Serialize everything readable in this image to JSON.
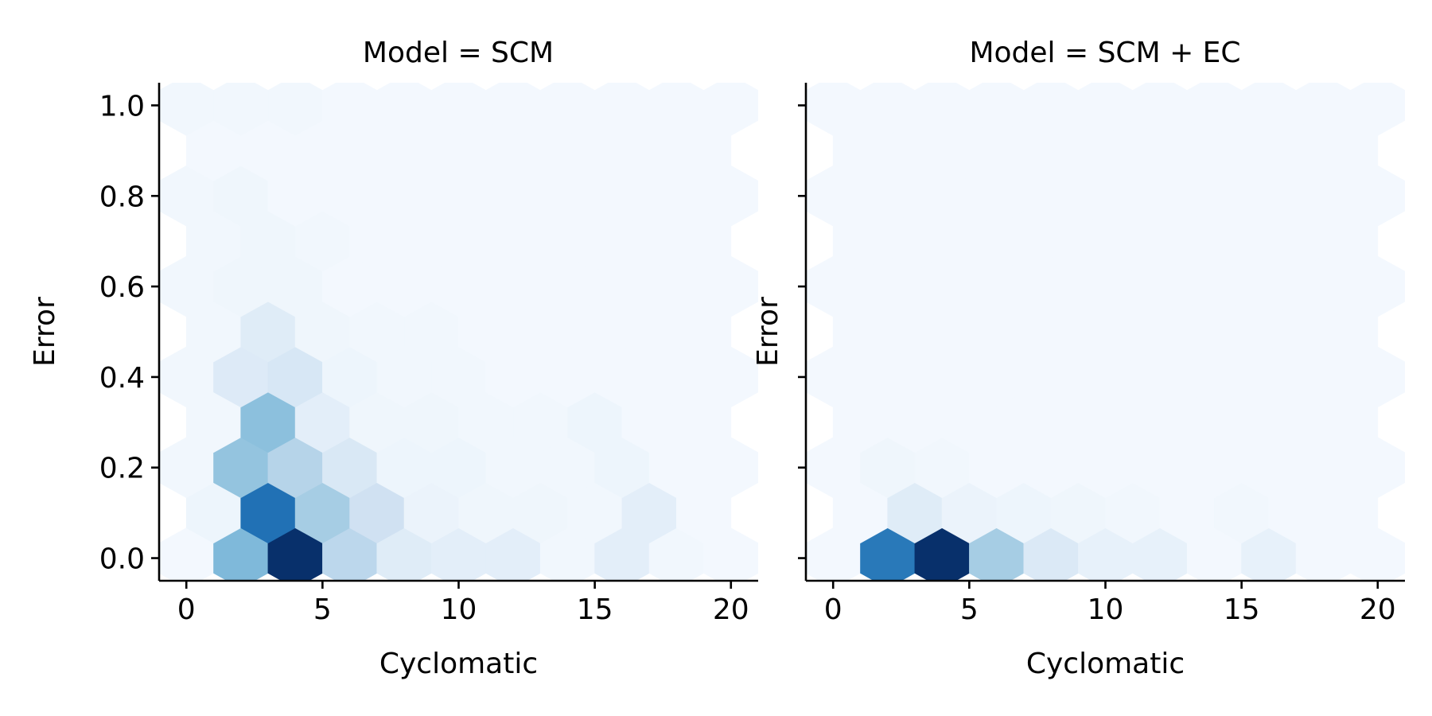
{
  "chart_data": [
    {
      "type": "heatmap",
      "subtype": "hexbin",
      "title": "Model = SCM",
      "xlabel": "Cyclomatic",
      "ylabel": "Error",
      "xlim": [
        -1,
        21
      ],
      "ylim": [
        -0.05,
        1.05
      ],
      "xticks": [
        "0",
        "5",
        "10",
        "15",
        "20"
      ],
      "yticks": [
        "0.0",
        "0.2",
        "0.4",
        "0.6",
        "0.8",
        "1.0"
      ],
      "colormap": "Blues",
      "grid": false,
      "hex_spacing": {
        "x": 2,
        "y": 0.1
      },
      "cells": [
        {
          "x": 0,
          "y": 0.0,
          "v": 0.02
        },
        {
          "x": 2,
          "y": 0.0,
          "v": 0.45
        },
        {
          "x": 4,
          "y": 0.0,
          "v": 1.0
        },
        {
          "x": 6,
          "y": 0.0,
          "v": 0.28
        },
        {
          "x": 8,
          "y": 0.0,
          "v": 0.12
        },
        {
          "x": 10,
          "y": 0.0,
          "v": 0.1
        },
        {
          "x": 12,
          "y": 0.0,
          "v": 0.1
        },
        {
          "x": 14,
          "y": 0.0,
          "v": 0.03
        },
        {
          "x": 16,
          "y": 0.0,
          "v": 0.1
        },
        {
          "x": 18,
          "y": 0.0,
          "v": 0.03
        },
        {
          "x": 20,
          "y": 0.0,
          "v": 0.02
        },
        {
          "x": 1,
          "y": 0.1,
          "v": 0.05
        },
        {
          "x": 3,
          "y": 0.1,
          "v": 0.75
        },
        {
          "x": 5,
          "y": 0.1,
          "v": 0.35
        },
        {
          "x": 7,
          "y": 0.1,
          "v": 0.2
        },
        {
          "x": 9,
          "y": 0.1,
          "v": 0.06
        },
        {
          "x": 11,
          "y": 0.1,
          "v": 0.04
        },
        {
          "x": 13,
          "y": 0.1,
          "v": 0.04
        },
        {
          "x": 15,
          "y": 0.1,
          "v": 0.03
        },
        {
          "x": 17,
          "y": 0.1,
          "v": 0.1
        },
        {
          "x": 19,
          "y": 0.1,
          "v": 0.02
        },
        {
          "x": 0,
          "y": 0.2,
          "v": 0.03
        },
        {
          "x": 2,
          "y": 0.2,
          "v": 0.4
        },
        {
          "x": 4,
          "y": 0.2,
          "v": 0.3
        },
        {
          "x": 6,
          "y": 0.2,
          "v": 0.15
        },
        {
          "x": 8,
          "y": 0.2,
          "v": 0.05
        },
        {
          "x": 10,
          "y": 0.2,
          "v": 0.05
        },
        {
          "x": 12,
          "y": 0.2,
          "v": 0.03
        },
        {
          "x": 14,
          "y": 0.2,
          "v": 0.03
        },
        {
          "x": 16,
          "y": 0.2,
          "v": 0.05
        },
        {
          "x": 18,
          "y": 0.2,
          "v": 0.02
        },
        {
          "x": 20,
          "y": 0.2,
          "v": 0.02
        },
        {
          "x": 1,
          "y": 0.3,
          "v": 0.03
        },
        {
          "x": 3,
          "y": 0.3,
          "v": 0.42
        },
        {
          "x": 5,
          "y": 0.3,
          "v": 0.1
        },
        {
          "x": 7,
          "y": 0.3,
          "v": 0.04
        },
        {
          "x": 9,
          "y": 0.3,
          "v": 0.04
        },
        {
          "x": 11,
          "y": 0.3,
          "v": 0.03
        },
        {
          "x": 13,
          "y": 0.3,
          "v": 0.03
        },
        {
          "x": 15,
          "y": 0.3,
          "v": 0.05
        },
        {
          "x": 17,
          "y": 0.3,
          "v": 0.02
        },
        {
          "x": 19,
          "y": 0.3,
          "v": 0.02
        },
        {
          "x": 0,
          "y": 0.4,
          "v": 0.03
        },
        {
          "x": 2,
          "y": 0.4,
          "v": 0.13
        },
        {
          "x": 4,
          "y": 0.4,
          "v": 0.16
        },
        {
          "x": 6,
          "y": 0.4,
          "v": 0.05
        },
        {
          "x": 8,
          "y": 0.4,
          "v": 0.03
        },
        {
          "x": 10,
          "y": 0.4,
          "v": 0.03
        },
        {
          "x": 12,
          "y": 0.4,
          "v": 0.02
        },
        {
          "x": 14,
          "y": 0.4,
          "v": 0.02
        },
        {
          "x": 16,
          "y": 0.4,
          "v": 0.02
        },
        {
          "x": 18,
          "y": 0.4,
          "v": 0.02
        },
        {
          "x": 20,
          "y": 0.4,
          "v": 0.02
        },
        {
          "x": 1,
          "y": 0.5,
          "v": 0.03
        },
        {
          "x": 3,
          "y": 0.5,
          "v": 0.12
        },
        {
          "x": 5,
          "y": 0.5,
          "v": 0.04
        },
        {
          "x": 7,
          "y": 0.5,
          "v": 0.03
        },
        {
          "x": 9,
          "y": 0.5,
          "v": 0.03
        },
        {
          "x": 11,
          "y": 0.5,
          "v": 0.02
        },
        {
          "x": 13,
          "y": 0.5,
          "v": 0.02
        },
        {
          "x": 15,
          "y": 0.5,
          "v": 0.02
        },
        {
          "x": 17,
          "y": 0.5,
          "v": 0.02
        },
        {
          "x": 19,
          "y": 0.5,
          "v": 0.02
        },
        {
          "x": 0,
          "y": 0.6,
          "v": 0.03
        },
        {
          "x": 2,
          "y": 0.6,
          "v": 0.04
        },
        {
          "x": 4,
          "y": 0.6,
          "v": 0.04
        },
        {
          "x": 6,
          "y": 0.6,
          "v": 0.02
        },
        {
          "x": 8,
          "y": 0.6,
          "v": 0.02
        },
        {
          "x": 10,
          "y": 0.6,
          "v": 0.02
        },
        {
          "x": 12,
          "y": 0.6,
          "v": 0.02
        },
        {
          "x": 14,
          "y": 0.6,
          "v": 0.02
        },
        {
          "x": 16,
          "y": 0.6,
          "v": 0.02
        },
        {
          "x": 18,
          "y": 0.6,
          "v": 0.02
        },
        {
          "x": 20,
          "y": 0.6,
          "v": 0.02
        },
        {
          "x": 1,
          "y": 0.7,
          "v": 0.03
        },
        {
          "x": 3,
          "y": 0.7,
          "v": 0.04
        },
        {
          "x": 5,
          "y": 0.7,
          "v": 0.03
        },
        {
          "x": 7,
          "y": 0.7,
          "v": 0.02
        },
        {
          "x": 9,
          "y": 0.7,
          "v": 0.02
        },
        {
          "x": 11,
          "y": 0.7,
          "v": 0.02
        },
        {
          "x": 13,
          "y": 0.7,
          "v": 0.02
        },
        {
          "x": 15,
          "y": 0.7,
          "v": 0.02
        },
        {
          "x": 17,
          "y": 0.7,
          "v": 0.02
        },
        {
          "x": 19,
          "y": 0.7,
          "v": 0.02
        },
        {
          "x": 0,
          "y": 0.8,
          "v": 0.03
        },
        {
          "x": 2,
          "y": 0.8,
          "v": 0.04
        },
        {
          "x": 4,
          "y": 0.8,
          "v": 0.02
        },
        {
          "x": 6,
          "y": 0.8,
          "v": 0.02
        },
        {
          "x": 8,
          "y": 0.8,
          "v": 0.02
        },
        {
          "x": 10,
          "y": 0.8,
          "v": 0.02
        },
        {
          "x": 12,
          "y": 0.8,
          "v": 0.02
        },
        {
          "x": 14,
          "y": 0.8,
          "v": 0.02
        },
        {
          "x": 16,
          "y": 0.8,
          "v": 0.02
        },
        {
          "x": 18,
          "y": 0.8,
          "v": 0.02
        },
        {
          "x": 20,
          "y": 0.8,
          "v": 0.02
        },
        {
          "x": 1,
          "y": 0.9,
          "v": 0.02
        },
        {
          "x": 3,
          "y": 0.9,
          "v": 0.02
        },
        {
          "x": 5,
          "y": 0.9,
          "v": 0.02
        },
        {
          "x": 7,
          "y": 0.9,
          "v": 0.02
        },
        {
          "x": 9,
          "y": 0.9,
          "v": 0.02
        },
        {
          "x": 11,
          "y": 0.9,
          "v": 0.02
        },
        {
          "x": 13,
          "y": 0.9,
          "v": 0.02
        },
        {
          "x": 15,
          "y": 0.9,
          "v": 0.02
        },
        {
          "x": 17,
          "y": 0.9,
          "v": 0.02
        },
        {
          "x": 19,
          "y": 0.9,
          "v": 0.02
        },
        {
          "x": 0,
          "y": 1.0,
          "v": 0.03
        },
        {
          "x": 2,
          "y": 1.0,
          "v": 0.03
        },
        {
          "x": 4,
          "y": 1.0,
          "v": 0.03
        },
        {
          "x": 6,
          "y": 1.0,
          "v": 0.02
        },
        {
          "x": 8,
          "y": 1.0,
          "v": 0.02
        },
        {
          "x": 10,
          "y": 1.0,
          "v": 0.02
        },
        {
          "x": 12,
          "y": 1.0,
          "v": 0.02
        },
        {
          "x": 14,
          "y": 1.0,
          "v": 0.02
        },
        {
          "x": 16,
          "y": 1.0,
          "v": 0.02
        },
        {
          "x": 18,
          "y": 1.0,
          "v": 0.02
        },
        {
          "x": 20,
          "y": 1.0,
          "v": 0.02
        }
      ]
    },
    {
      "type": "heatmap",
      "subtype": "hexbin",
      "title": "Model = SCM + EC",
      "xlabel": "Cyclomatic",
      "ylabel": "Error",
      "xlim": [
        -1,
        21
      ],
      "ylim": [
        -0.05,
        1.05
      ],
      "xticks": [
        "0",
        "5",
        "10",
        "15",
        "20"
      ],
      "yticks": [
        "0.0",
        "0.2",
        "0.4",
        "0.6",
        "0.8",
        "1.0"
      ],
      "colormap": "Blues",
      "grid": false,
      "hex_spacing": {
        "x": 2,
        "y": 0.1
      },
      "cells": [
        {
          "x": 0,
          "y": 0.0,
          "v": 0.02
        },
        {
          "x": 2,
          "y": 0.0,
          "v": 0.72
        },
        {
          "x": 4,
          "y": 0.0,
          "v": 1.0
        },
        {
          "x": 6,
          "y": 0.0,
          "v": 0.35
        },
        {
          "x": 8,
          "y": 0.0,
          "v": 0.14
        },
        {
          "x": 10,
          "y": 0.0,
          "v": 0.08
        },
        {
          "x": 12,
          "y": 0.0,
          "v": 0.08
        },
        {
          "x": 14,
          "y": 0.0,
          "v": 0.02
        },
        {
          "x": 16,
          "y": 0.0,
          "v": 0.08
        },
        {
          "x": 18,
          "y": 0.0,
          "v": 0.02
        },
        {
          "x": 20,
          "y": 0.0,
          "v": 0.02
        },
        {
          "x": 1,
          "y": 0.1,
          "v": 0.02
        },
        {
          "x": 3,
          "y": 0.1,
          "v": 0.12
        },
        {
          "x": 5,
          "y": 0.1,
          "v": 0.06
        },
        {
          "x": 7,
          "y": 0.1,
          "v": 0.05
        },
        {
          "x": 9,
          "y": 0.1,
          "v": 0.04
        },
        {
          "x": 11,
          "y": 0.1,
          "v": 0.03
        },
        {
          "x": 13,
          "y": 0.1,
          "v": 0.02
        },
        {
          "x": 15,
          "y": 0.1,
          "v": 0.03
        },
        {
          "x": 17,
          "y": 0.1,
          "v": 0.02
        },
        {
          "x": 19,
          "y": 0.1,
          "v": 0.02
        },
        {
          "x": 0,
          "y": 0.2,
          "v": 0.02
        },
        {
          "x": 2,
          "y": 0.2,
          "v": 0.04
        },
        {
          "x": 4,
          "y": 0.2,
          "v": 0.03
        },
        {
          "x": 6,
          "y": 0.2,
          "v": 0.02
        },
        {
          "x": 8,
          "y": 0.2,
          "v": 0.02
        },
        {
          "x": 10,
          "y": 0.2,
          "v": 0.02
        },
        {
          "x": 12,
          "y": 0.2,
          "v": 0.02
        },
        {
          "x": 14,
          "y": 0.2,
          "v": 0.02
        },
        {
          "x": 16,
          "y": 0.2,
          "v": 0.02
        },
        {
          "x": 18,
          "y": 0.2,
          "v": 0.02
        },
        {
          "x": 20,
          "y": 0.2,
          "v": 0.02
        },
        {
          "x": 1,
          "y": 0.3,
          "v": 0.02
        },
        {
          "x": 3,
          "y": 0.3,
          "v": 0.02
        },
        {
          "x": 5,
          "y": 0.3,
          "v": 0.02
        },
        {
          "x": 7,
          "y": 0.3,
          "v": 0.02
        },
        {
          "x": 9,
          "y": 0.3,
          "v": 0.02
        },
        {
          "x": 11,
          "y": 0.3,
          "v": 0.02
        },
        {
          "x": 13,
          "y": 0.3,
          "v": 0.02
        },
        {
          "x": 15,
          "y": 0.3,
          "v": 0.02
        },
        {
          "x": 17,
          "y": 0.3,
          "v": 0.02
        },
        {
          "x": 19,
          "y": 0.3,
          "v": 0.02
        },
        {
          "x": 0,
          "y": 0.4,
          "v": 0.02
        },
        {
          "x": 2,
          "y": 0.4,
          "v": 0.02
        },
        {
          "x": 4,
          "y": 0.4,
          "v": 0.02
        },
        {
          "x": 6,
          "y": 0.4,
          "v": 0.02
        },
        {
          "x": 8,
          "y": 0.4,
          "v": 0.02
        },
        {
          "x": 10,
          "y": 0.4,
          "v": 0.02
        },
        {
          "x": 12,
          "y": 0.4,
          "v": 0.02
        },
        {
          "x": 14,
          "y": 0.4,
          "v": 0.02
        },
        {
          "x": 16,
          "y": 0.4,
          "v": 0.02
        },
        {
          "x": 18,
          "y": 0.4,
          "v": 0.02
        },
        {
          "x": 20,
          "y": 0.4,
          "v": 0.02
        },
        {
          "x": 1,
          "y": 0.5,
          "v": 0.02
        },
        {
          "x": 3,
          "y": 0.5,
          "v": 0.02
        },
        {
          "x": 5,
          "y": 0.5,
          "v": 0.02
        },
        {
          "x": 7,
          "y": 0.5,
          "v": 0.02
        },
        {
          "x": 9,
          "y": 0.5,
          "v": 0.02
        },
        {
          "x": 11,
          "y": 0.5,
          "v": 0.02
        },
        {
          "x": 13,
          "y": 0.5,
          "v": 0.02
        },
        {
          "x": 15,
          "y": 0.5,
          "v": 0.02
        },
        {
          "x": 17,
          "y": 0.5,
          "v": 0.02
        },
        {
          "x": 19,
          "y": 0.5,
          "v": 0.02
        },
        {
          "x": 0,
          "y": 0.6,
          "v": 0.02
        },
        {
          "x": 2,
          "y": 0.6,
          "v": 0.02
        },
        {
          "x": 4,
          "y": 0.6,
          "v": 0.02
        },
        {
          "x": 6,
          "y": 0.6,
          "v": 0.02
        },
        {
          "x": 8,
          "y": 0.6,
          "v": 0.02
        },
        {
          "x": 10,
          "y": 0.6,
          "v": 0.02
        },
        {
          "x": 12,
          "y": 0.6,
          "v": 0.02
        },
        {
          "x": 14,
          "y": 0.6,
          "v": 0.02
        },
        {
          "x": 16,
          "y": 0.6,
          "v": 0.02
        },
        {
          "x": 18,
          "y": 0.6,
          "v": 0.02
        },
        {
          "x": 20,
          "y": 0.6,
          "v": 0.02
        },
        {
          "x": 1,
          "y": 0.7,
          "v": 0.02
        },
        {
          "x": 3,
          "y": 0.7,
          "v": 0.02
        },
        {
          "x": 5,
          "y": 0.7,
          "v": 0.02
        },
        {
          "x": 7,
          "y": 0.7,
          "v": 0.02
        },
        {
          "x": 9,
          "y": 0.7,
          "v": 0.02
        },
        {
          "x": 11,
          "y": 0.7,
          "v": 0.02
        },
        {
          "x": 13,
          "y": 0.7,
          "v": 0.02
        },
        {
          "x": 15,
          "y": 0.7,
          "v": 0.02
        },
        {
          "x": 17,
          "y": 0.7,
          "v": 0.02
        },
        {
          "x": 19,
          "y": 0.7,
          "v": 0.02
        },
        {
          "x": 0,
          "y": 0.8,
          "v": 0.02
        },
        {
          "x": 2,
          "y": 0.8,
          "v": 0.02
        },
        {
          "x": 4,
          "y": 0.8,
          "v": 0.02
        },
        {
          "x": 6,
          "y": 0.8,
          "v": 0.02
        },
        {
          "x": 8,
          "y": 0.8,
          "v": 0.02
        },
        {
          "x": 10,
          "y": 0.8,
          "v": 0.02
        },
        {
          "x": 12,
          "y": 0.8,
          "v": 0.02
        },
        {
          "x": 14,
          "y": 0.8,
          "v": 0.02
        },
        {
          "x": 16,
          "y": 0.8,
          "v": 0.02
        },
        {
          "x": 18,
          "y": 0.8,
          "v": 0.02
        },
        {
          "x": 20,
          "y": 0.8,
          "v": 0.02
        },
        {
          "x": 1,
          "y": 0.9,
          "v": 0.02
        },
        {
          "x": 3,
          "y": 0.9,
          "v": 0.02
        },
        {
          "x": 5,
          "y": 0.9,
          "v": 0.02
        },
        {
          "x": 7,
          "y": 0.9,
          "v": 0.02
        },
        {
          "x": 9,
          "y": 0.9,
          "v": 0.02
        },
        {
          "x": 11,
          "y": 0.9,
          "v": 0.02
        },
        {
          "x": 13,
          "y": 0.9,
          "v": 0.02
        },
        {
          "x": 15,
          "y": 0.9,
          "v": 0.02
        },
        {
          "x": 17,
          "y": 0.9,
          "v": 0.02
        },
        {
          "x": 19,
          "y": 0.9,
          "v": 0.02
        },
        {
          "x": 0,
          "y": 1.0,
          "v": 0.02
        },
        {
          "x": 2,
          "y": 1.0,
          "v": 0.02
        },
        {
          "x": 4,
          "y": 1.0,
          "v": 0.02
        },
        {
          "x": 6,
          "y": 1.0,
          "v": 0.02
        },
        {
          "x": 8,
          "y": 1.0,
          "v": 0.02
        },
        {
          "x": 10,
          "y": 1.0,
          "v": 0.02
        },
        {
          "x": 12,
          "y": 1.0,
          "v": 0.02
        },
        {
          "x": 14,
          "y": 1.0,
          "v": 0.02
        },
        {
          "x": 16,
          "y": 1.0,
          "v": 0.02
        },
        {
          "x": 18,
          "y": 1.0,
          "v": 0.02
        },
        {
          "x": 20,
          "y": 1.0,
          "v": 0.02
        }
      ]
    }
  ]
}
